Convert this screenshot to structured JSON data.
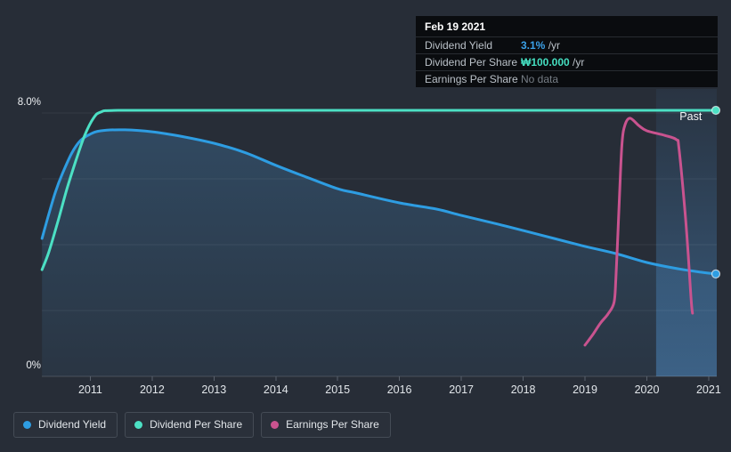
{
  "page": {
    "background": "#272d37"
  },
  "tooltip": {
    "date": "Feb 19 2021",
    "rows": [
      {
        "label": "Dividend Yield",
        "value": "3.1%",
        "suffix": " /yr",
        "value_color": "#3ba1e8",
        "bold": true
      },
      {
        "label": "Dividend Per Share",
        "value": "₩100.000",
        "suffix": " /yr",
        "value_color": "#45dfc1",
        "bold": true
      },
      {
        "label": "Earnings Per Share",
        "value": "No data",
        "suffix": "",
        "value_color": "#767d85",
        "bold": false
      }
    ]
  },
  "legend": [
    {
      "id": "dividend-yield",
      "label": "Dividend Yield",
      "color": "#2e9de2"
    },
    {
      "id": "dividend-per-share",
      "label": "Dividend Per Share",
      "color": "#4ce0c4"
    },
    {
      "id": "earnings-per-share",
      "label": "Earnings Per Share",
      "color": "#c9538f"
    }
  ],
  "chart_data": {
    "type": "line",
    "title": "Dividend history",
    "x_axis": {
      "ticks": [
        2011,
        2012,
        2013,
        2014,
        2015,
        2016,
        2017,
        2018,
        2019,
        2020,
        2021
      ],
      "tick_labels": [
        "2011",
        "2012",
        "2013",
        "2014",
        "2015",
        "2016",
        "2017",
        "2018",
        "2019",
        "2020",
        "2021"
      ],
      "range": [
        2010.2,
        2021.15
      ]
    },
    "y_axis": {
      "min": 0,
      "max": 8,
      "unit": "%",
      "gridlines": [
        0,
        2,
        4,
        6,
        8
      ],
      "labels": [
        {
          "value": 8,
          "text": "8.0%"
        },
        {
          "value": 0,
          "text": "0%"
        }
      ]
    },
    "annotations": [
      {
        "text": "Past",
        "year": 2020.71,
        "value": 7.89
      }
    ],
    "highlight_band": {
      "from_year": 2020.15,
      "to_year": 2021.13
    },
    "series": [
      {
        "name": "Dividend Yield",
        "color": "#2e9de2",
        "area": true,
        "end_dot": true,
        "unit": "% /yr",
        "points": [
          [
            2010.22,
            4.19
          ],
          [
            2010.34,
            5.0
          ],
          [
            2010.44,
            5.62
          ],
          [
            2010.55,
            6.16
          ],
          [
            2010.7,
            6.78
          ],
          [
            2010.84,
            7.16
          ],
          [
            2010.99,
            7.35
          ],
          [
            2011.17,
            7.46
          ],
          [
            2011.56,
            7.49
          ],
          [
            2012.0,
            7.43
          ],
          [
            2012.5,
            7.28
          ],
          [
            2013.0,
            7.08
          ],
          [
            2013.5,
            6.8
          ],
          [
            2014.0,
            6.41
          ],
          [
            2014.5,
            6.05
          ],
          [
            2015.0,
            5.7
          ],
          [
            2015.3,
            5.57
          ],
          [
            2016.0,
            5.27
          ],
          [
            2016.6,
            5.08
          ],
          [
            2017.0,
            4.89
          ],
          [
            2017.6,
            4.62
          ],
          [
            2018.0,
            4.43
          ],
          [
            2018.5,
            4.19
          ],
          [
            2019.0,
            3.95
          ],
          [
            2019.5,
            3.73
          ],
          [
            2020.0,
            3.46
          ],
          [
            2020.5,
            3.27
          ],
          [
            2020.9,
            3.16
          ],
          [
            2021.13,
            3.11
          ]
        ]
      },
      {
        "name": "Dividend Per Share",
        "color": "#4ce0c4",
        "area": false,
        "end_dot": true,
        "unit": "₩ /yr",
        "flat_value_label": "₩100.000",
        "points": [
          [
            2010.22,
            3.24
          ],
          [
            2010.33,
            3.78
          ],
          [
            2010.48,
            4.73
          ],
          [
            2010.62,
            5.68
          ],
          [
            2010.77,
            6.57
          ],
          [
            2010.91,
            7.32
          ],
          [
            2011.05,
            7.84
          ],
          [
            2011.17,
            8.03
          ],
          [
            2011.45,
            8.08
          ],
          [
            2013.0,
            8.08
          ],
          [
            2016.0,
            8.08
          ],
          [
            2019.0,
            8.08
          ],
          [
            2021.13,
            8.08
          ]
        ]
      },
      {
        "name": "Earnings Per Share",
        "color": "#c9538f",
        "area": false,
        "end_dot": false,
        "unit": "own scale (plotted vs yield axis)",
        "points": [
          [
            2019.0,
            0.95
          ],
          [
            2019.12,
            1.25
          ],
          [
            2019.25,
            1.62
          ],
          [
            2019.37,
            1.89
          ],
          [
            2019.47,
            2.24
          ],
          [
            2019.5,
            2.97
          ],
          [
            2019.53,
            4.22
          ],
          [
            2019.56,
            5.57
          ],
          [
            2019.6,
            7.11
          ],
          [
            2019.65,
            7.65
          ],
          [
            2019.73,
            7.84
          ],
          [
            2019.87,
            7.62
          ],
          [
            2020.0,
            7.46
          ],
          [
            2020.29,
            7.32
          ],
          [
            2020.48,
            7.19
          ],
          [
            2020.52,
            6.92
          ],
          [
            2020.62,
            4.95
          ],
          [
            2020.67,
            3.68
          ],
          [
            2020.72,
            2.24
          ],
          [
            2020.74,
            1.92
          ]
        ]
      }
    ],
    "legend_position": "bottom-left",
    "grid": true
  }
}
